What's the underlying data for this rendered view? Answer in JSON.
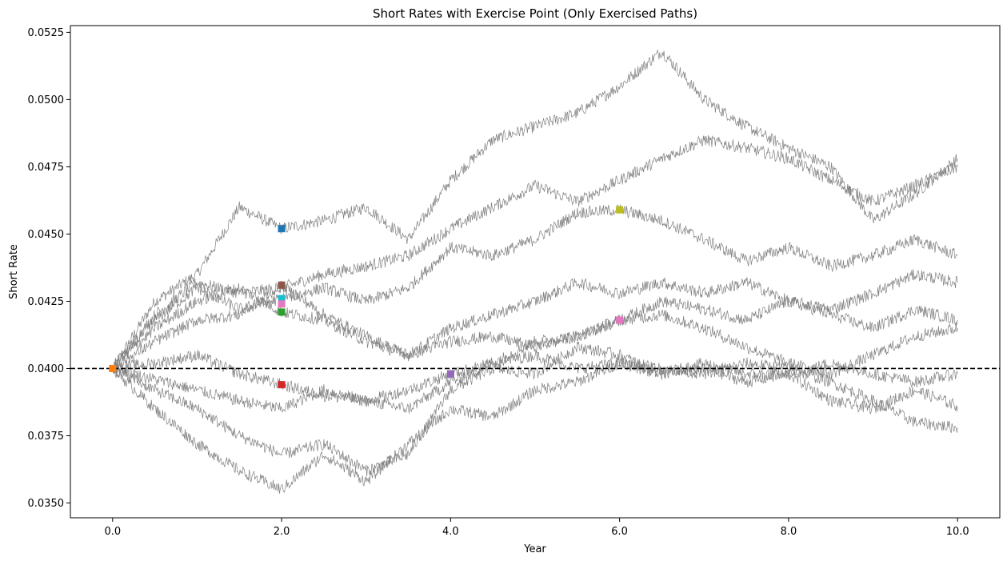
{
  "chart_data": {
    "type": "line",
    "title": "Short Rates with Exercise Point (Only Exercised Paths)",
    "xlabel": "Year",
    "ylabel": "Short Rate",
    "xlim": [
      -0.5,
      10.5
    ],
    "ylim": [
      0.03445,
      0.05275
    ],
    "grid": false,
    "x_ticks": [
      0.0,
      2.0,
      4.0,
      6.0,
      8.0,
      10.0
    ],
    "x_tick_labels": [
      "0.0",
      "2.0",
      "4.0",
      "6.0",
      "8.0",
      "10.0"
    ],
    "y_ticks": [
      0.035,
      0.0375,
      0.04,
      0.0425,
      0.045,
      0.0475,
      0.05,
      0.0525
    ],
    "y_tick_labels": [
      "0.0350",
      "0.0375",
      "0.0400",
      "0.0425",
      "0.0450",
      "0.0475",
      "0.0500",
      "0.0525"
    ],
    "reference_line": {
      "y": 0.04,
      "style": "dashed",
      "color": "#000000"
    },
    "path_color": "#808080",
    "paths": [
      {
        "x": [
          0,
          0.5,
          1,
          1.5,
          2,
          2.5,
          3,
          3.5,
          4,
          4.5,
          5,
          5.5,
          6,
          6.5,
          7,
          7.5,
          8,
          8.5,
          9,
          9.5,
          10
        ],
        "y": [
          0.04,
          0.0425,
          0.0435,
          0.046,
          0.0452,
          0.0455,
          0.046,
          0.0448,
          0.047,
          0.0485,
          0.049,
          0.0495,
          0.0505,
          0.0518,
          0.05,
          0.049,
          0.0482,
          0.0475,
          0.0455,
          0.0465,
          0.0478
        ]
      },
      {
        "x": [
          0,
          0.5,
          1,
          1.5,
          2,
          2.5,
          3,
          3.5,
          4,
          4.5,
          5,
          5.5,
          6,
          6.5,
          7,
          7.5,
          8,
          8.5,
          9,
          9.5,
          10
        ],
        "y": [
          0.04,
          0.042,
          0.0432,
          0.0428,
          0.043,
          0.0435,
          0.0438,
          0.0442,
          0.0452,
          0.046,
          0.0468,
          0.0462,
          0.047,
          0.0478,
          0.0485,
          0.0482,
          0.0478,
          0.047,
          0.0462,
          0.0468,
          0.0475
        ]
      },
      {
        "x": [
          0,
          0.5,
          1,
          1.5,
          2,
          2.5,
          3,
          3.5,
          4,
          4.5,
          5,
          5.5,
          6,
          6.5,
          7,
          7.5,
          8,
          8.5,
          9,
          9.5,
          10
        ],
        "y": [
          0.04,
          0.0418,
          0.043,
          0.0422,
          0.0426,
          0.043,
          0.0425,
          0.043,
          0.0445,
          0.0442,
          0.0448,
          0.0458,
          0.0459,
          0.0455,
          0.0448,
          0.044,
          0.0445,
          0.0438,
          0.0442,
          0.0448,
          0.0442
        ]
      },
      {
        "x": [
          0,
          0.5,
          1,
          1.5,
          2,
          2.5,
          3,
          3.5,
          4,
          4.5,
          5,
          5.5,
          6,
          6.5,
          7,
          7.5,
          8,
          8.5,
          9,
          9.5,
          10
        ],
        "y": [
          0.04,
          0.0415,
          0.0425,
          0.043,
          0.0421,
          0.0418,
          0.041,
          0.0405,
          0.0415,
          0.042,
          0.0425,
          0.0432,
          0.0428,
          0.0432,
          0.0428,
          0.0432,
          0.0425,
          0.0422,
          0.0428,
          0.0435,
          0.0432
        ]
      },
      {
        "x": [
          0,
          0.5,
          1,
          1.5,
          2,
          2.5,
          3,
          3.5,
          4,
          4.5,
          5,
          5.5,
          6,
          6.5,
          7,
          7.5,
          8,
          8.5,
          9,
          9.5,
          10
        ],
        "y": [
          0.04,
          0.041,
          0.0418,
          0.042,
          0.0431,
          0.042,
          0.0412,
          0.0405,
          0.041,
          0.0412,
          0.0408,
          0.0412,
          0.0418,
          0.0425,
          0.0422,
          0.0418,
          0.0425,
          0.042,
          0.0415,
          0.0422,
          0.0418
        ]
      },
      {
        "x": [
          0,
          0.5,
          1,
          1.5,
          2,
          2.5,
          3,
          3.5,
          4,
          4.5,
          5,
          5.5,
          6,
          6.5,
          7,
          7.5,
          8,
          8.5,
          9,
          9.5,
          10
        ],
        "y": [
          0.04,
          0.0402,
          0.0405,
          0.0398,
          0.0394,
          0.039,
          0.0388,
          0.0385,
          0.0395,
          0.0402,
          0.041,
          0.0412,
          0.0418,
          0.042,
          0.0415,
          0.0408,
          0.0402,
          0.0398,
          0.0405,
          0.0412,
          0.0415
        ]
      },
      {
        "x": [
          0,
          0.5,
          1,
          1.5,
          2,
          2.5,
          3,
          3.5,
          4,
          4.5,
          5,
          5.5,
          6,
          6.5,
          7,
          7.5,
          8,
          8.5,
          9,
          9.5,
          10
        ],
        "y": [
          0.04,
          0.0392,
          0.0385,
          0.0375,
          0.0368,
          0.0372,
          0.0362,
          0.0368,
          0.0392,
          0.04,
          0.0398,
          0.0408,
          0.0405,
          0.0398,
          0.04,
          0.0395,
          0.0398,
          0.0388,
          0.0385,
          0.0392,
          0.0386
        ]
      },
      {
        "x": [
          0,
          0.5,
          1,
          1.5,
          2,
          2.5,
          3,
          3.5,
          4,
          4.5,
          5,
          5.5,
          6,
          6.5,
          7,
          7.5,
          8,
          8.5,
          9,
          9.5,
          10
        ],
        "y": [
          0.04,
          0.0385,
          0.0372,
          0.0362,
          0.0355,
          0.0368,
          0.0358,
          0.0372,
          0.0385,
          0.0382,
          0.0392,
          0.0395,
          0.0402,
          0.04,
          0.0398,
          0.0402,
          0.04,
          0.0395,
          0.0388,
          0.038,
          0.0378
        ]
      },
      {
        "x": [
          0,
          0.5,
          1,
          1.5,
          2,
          2.5,
          3,
          3.5,
          4,
          4.5,
          5,
          5.5,
          6,
          6.5,
          7,
          7.5,
          8,
          8.5,
          9,
          9.5,
          10
        ],
        "y": [
          0.04,
          0.0396,
          0.0392,
          0.0388,
          0.0385,
          0.0392,
          0.0388,
          0.0392,
          0.0398,
          0.0402,
          0.0405,
          0.04,
          0.0402,
          0.0398,
          0.0402,
          0.0398,
          0.0398,
          0.0402,
          0.0398,
          0.0395,
          0.0398
        ]
      }
    ],
    "exercise_points": [
      {
        "x": 0.0,
        "y": 0.04,
        "color": "#ff7f0e"
      },
      {
        "x": 2.0,
        "y": 0.0452,
        "color": "#1f77b4"
      },
      {
        "x": 2.0,
        "y": 0.0431,
        "color": "#8c564b"
      },
      {
        "x": 2.0,
        "y": 0.0426,
        "color": "#17becf"
      },
      {
        "x": 2.0,
        "y": 0.0424,
        "color": "#e377c2"
      },
      {
        "x": 2.0,
        "y": 0.0421,
        "color": "#2ca02c"
      },
      {
        "x": 2.0,
        "y": 0.0394,
        "color": "#d62728"
      },
      {
        "x": 4.0,
        "y": 0.0398,
        "color": "#9467bd"
      },
      {
        "x": 6.0,
        "y": 0.0459,
        "color": "#bcbd22"
      },
      {
        "x": 6.0,
        "y": 0.0418,
        "color": "#e377c2"
      }
    ]
  }
}
